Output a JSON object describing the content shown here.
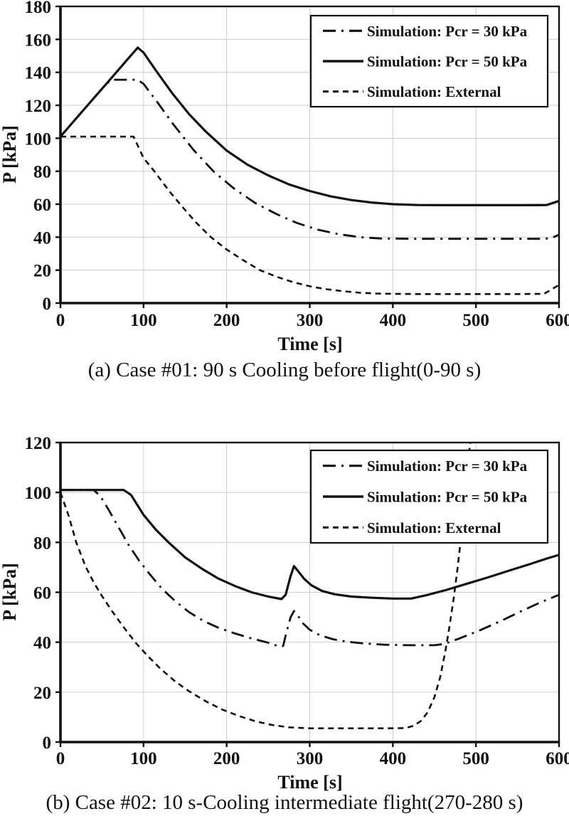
{
  "figure": {
    "background": "#ffffff",
    "ink_color": "#111111",
    "grid_color": "#cccccc"
  },
  "legend": {
    "items": [
      {
        "label": "Simulation: Pcr = 30 kPa",
        "style": "dashdot"
      },
      {
        "label": "Simulation: Pcr = 50 kPa",
        "style": "solid"
      },
      {
        "label": "Simulation: External",
        "style": "dashed"
      }
    ]
  },
  "chart_data": [
    {
      "id": "case01",
      "type": "line",
      "caption": "(a) Case #01: 90 s Cooling before flight(0-90 s)",
      "xlabel": "Time [s]",
      "ylabel": "P [kPa]",
      "xlim": [
        0,
        600
      ],
      "ylim": [
        0,
        180
      ],
      "xticks": [
        0,
        100,
        200,
        300,
        400,
        500,
        600
      ],
      "yticks": [
        0,
        20,
        40,
        60,
        80,
        100,
        120,
        140,
        160,
        180
      ],
      "grid": true,
      "legend_position": "top-right",
      "series": [
        {
          "name": "Simulation: Pcr = 30 kPa",
          "style": "dashdot",
          "points": [
            [
              0,
              101
            ],
            [
              30,
              118.5
            ],
            [
              55,
              133
            ],
            [
              62,
              135.5
            ],
            [
              93,
              135.5
            ],
            [
              100,
              133
            ],
            [
              115,
              123
            ],
            [
              135,
              109
            ],
            [
              160,
              93
            ],
            [
              185,
              79.5
            ],
            [
              210,
              69
            ],
            [
              235,
              60.5
            ],
            [
              260,
              54
            ],
            [
              285,
              48.5
            ],
            [
              310,
              44.5
            ],
            [
              335,
              41.8
            ],
            [
              360,
              40
            ],
            [
              385,
              39.2
            ],
            [
              420,
              39
            ],
            [
              460,
              39
            ],
            [
              500,
              39
            ],
            [
              540,
              39
            ],
            [
              580,
              39
            ],
            [
              590,
              39.3
            ],
            [
              600,
              41.5
            ]
          ]
        },
        {
          "name": "Simulation: Pcr = 50 kPa",
          "style": "solid",
          "points": [
            [
              0,
              101
            ],
            [
              30,
              118.5
            ],
            [
              60,
              135.8
            ],
            [
              80,
              147.5
            ],
            [
              93,
              155
            ],
            [
              100,
              152
            ],
            [
              115,
              141
            ],
            [
              135,
              127
            ],
            [
              155,
              114.5
            ],
            [
              175,
              104
            ],
            [
              200,
              92.5
            ],
            [
              225,
              84
            ],
            [
              250,
              77.5
            ],
            [
              275,
              72
            ],
            [
              300,
              68
            ],
            [
              325,
              64.8
            ],
            [
              350,
              62.5
            ],
            [
              375,
              61
            ],
            [
              400,
              60
            ],
            [
              430,
              59.5
            ],
            [
              470,
              59.4
            ],
            [
              510,
              59.4
            ],
            [
              550,
              59.4
            ],
            [
              585,
              59.5
            ],
            [
              600,
              62
            ]
          ]
        },
        {
          "name": "Simulation: External",
          "style": "dashed",
          "points": [
            [
              0,
              101
            ],
            [
              88,
              101
            ],
            [
              100,
              88
            ],
            [
              113,
              80
            ],
            [
              130,
              68.5
            ],
            [
              144,
              60
            ],
            [
              163,
              49
            ],
            [
              181,
              40
            ],
            [
              200,
              32.5
            ],
            [
              220,
              26
            ],
            [
              240,
              20
            ],
            [
              260,
              16
            ],
            [
              280,
              12.7
            ],
            [
              300,
              10.2
            ],
            [
              320,
              8.4
            ],
            [
              340,
              7.2
            ],
            [
              360,
              6.3
            ],
            [
              380,
              5.8
            ],
            [
              400,
              5.6
            ],
            [
              430,
              5.5
            ],
            [
              470,
              5.5
            ],
            [
              510,
              5.5
            ],
            [
              550,
              5.5
            ],
            [
              582,
              5.6
            ],
            [
              600,
              11
            ]
          ]
        }
      ]
    },
    {
      "id": "case02",
      "type": "line",
      "caption": "(b) Case #02: 10 s-Cooling intermediate flight(270-280 s)",
      "xlabel": "Time [s]",
      "ylabel": "P [kPa]",
      "xlim": [
        0,
        600
      ],
      "ylim": [
        0,
        120
      ],
      "xticks": [
        0,
        100,
        200,
        300,
        400,
        500,
        600
      ],
      "yticks": [
        0,
        20,
        40,
        60,
        80,
        100,
        120
      ],
      "grid": true,
      "legend_position": "top-right",
      "series": [
        {
          "name": "Simulation: Pcr = 30 kPa",
          "style": "dashdot",
          "points": [
            [
              0,
              101
            ],
            [
              40,
              101
            ],
            [
              48,
              98.5
            ],
            [
              58,
              93
            ],
            [
              70,
              86
            ],
            [
              82,
              79
            ],
            [
              95,
              72.5
            ],
            [
              108,
              67
            ],
            [
              122,
              61.5
            ],
            [
              138,
              56.5
            ],
            [
              155,
              52
            ],
            [
              172,
              48.5
            ],
            [
              190,
              45.8
            ],
            [
              210,
              43.5
            ],
            [
              230,
              41.5
            ],
            [
              250,
              39.8
            ],
            [
              264,
              38.2
            ],
            [
              268,
              38.5
            ],
            [
              272,
              44
            ],
            [
              277,
              50
            ],
            [
              281,
              52.5
            ],
            [
              285,
              51
            ],
            [
              292,
              47.5
            ],
            [
              300,
              45
            ],
            [
              312,
              42.8
            ],
            [
              328,
              41.2
            ],
            [
              345,
              40.2
            ],
            [
              365,
              39.5
            ],
            [
              390,
              39
            ],
            [
              420,
              38.8
            ],
            [
              450,
              38.8
            ],
            [
              462,
              39.3
            ],
            [
              480,
              41.5
            ],
            [
              505,
              44.8
            ],
            [
              530,
              48.5
            ],
            [
              555,
              52.5
            ],
            [
              578,
              56
            ],
            [
              600,
              59
            ]
          ]
        },
        {
          "name": "Simulation: Pcr = 50 kPa",
          "style": "solid",
          "points": [
            [
              0,
              101
            ],
            [
              50,
              101
            ],
            [
              76,
              101
            ],
            [
              85,
              99
            ],
            [
              100,
              91
            ],
            [
              115,
              85
            ],
            [
              130,
              80
            ],
            [
              150,
              74
            ],
            [
              170,
              69.5
            ],
            [
              190,
              65.5
            ],
            [
              210,
              62.5
            ],
            [
              230,
              60
            ],
            [
              250,
              58.3
            ],
            [
              266,
              57.3
            ],
            [
              271,
              59
            ],
            [
              277,
              66.5
            ],
            [
              281,
              70.5
            ],
            [
              286,
              68.5
            ],
            [
              293,
              65.5
            ],
            [
              302,
              62.8
            ],
            [
              315,
              60.5
            ],
            [
              330,
              59.2
            ],
            [
              350,
              58.3
            ],
            [
              375,
              57.8
            ],
            [
              400,
              57.5
            ],
            [
              422,
              57.5
            ],
            [
              440,
              58.8
            ],
            [
              465,
              61
            ],
            [
              490,
              63.5
            ],
            [
              515,
              66
            ],
            [
              540,
              68.7
            ],
            [
              565,
              71.3
            ],
            [
              585,
              73.5
            ],
            [
              600,
              75
            ]
          ]
        },
        {
          "name": "Simulation: External",
          "style": "dashed",
          "points": [
            [
              0,
              100
            ],
            [
              10,
              90.5
            ],
            [
              19,
              80
            ],
            [
              30,
              70.5
            ],
            [
              40,
              64
            ],
            [
              50,
              58.5
            ],
            [
              62,
              52.5
            ],
            [
              75,
              46.5
            ],
            [
              90,
              40
            ],
            [
              105,
              34.5
            ],
            [
              120,
              29.5
            ],
            [
              138,
              24.3
            ],
            [
              155,
              20.3
            ],
            [
              175,
              16.3
            ],
            [
              195,
              13
            ],
            [
              215,
              10.4
            ],
            [
              235,
              8.3
            ],
            [
              255,
              6.8
            ],
            [
              275,
              5.9
            ],
            [
              300,
              5.5
            ],
            [
              330,
              5.5
            ],
            [
              360,
              5.5
            ],
            [
              390,
              5.5
            ],
            [
              415,
              5.6
            ],
            [
              425,
              6.5
            ],
            [
              434,
              8.5
            ],
            [
              442,
              12
            ],
            [
              450,
              18
            ],
            [
              457,
              26
            ],
            [
              463,
              36
            ],
            [
              468,
              46
            ],
            [
              473,
              57
            ],
            [
              478,
              70
            ],
            [
              483,
              85
            ],
            [
              487,
              99
            ],
            [
              490,
              110
            ],
            [
              493,
              120
            ]
          ]
        }
      ]
    }
  ]
}
